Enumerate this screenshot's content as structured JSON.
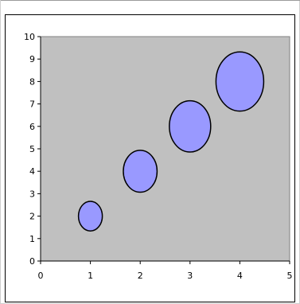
{
  "chart_data": {
    "type": "bubble",
    "title": "",
    "xlabel": "",
    "ylabel": "",
    "xlim": [
      0,
      5
    ],
    "ylim": [
      0,
      10
    ],
    "x_ticks": [
      0,
      1,
      2,
      3,
      4,
      5
    ],
    "y_ticks": [
      0,
      1,
      2,
      3,
      4,
      5,
      6,
      7,
      8,
      9,
      10
    ],
    "grid": false,
    "legend": "none",
    "plot_background": "#c0c0c0",
    "bubble_fill": "#9999ff",
    "bubble_stroke": "#000000",
    "series": [
      {
        "points": [
          {
            "x": 1,
            "y": 2,
            "size": 1
          },
          {
            "x": 2,
            "y": 4,
            "size": 2
          },
          {
            "x": 3,
            "y": 6,
            "size": 3
          },
          {
            "x": 4,
            "y": 8,
            "size": 4
          }
        ]
      }
    ]
  }
}
